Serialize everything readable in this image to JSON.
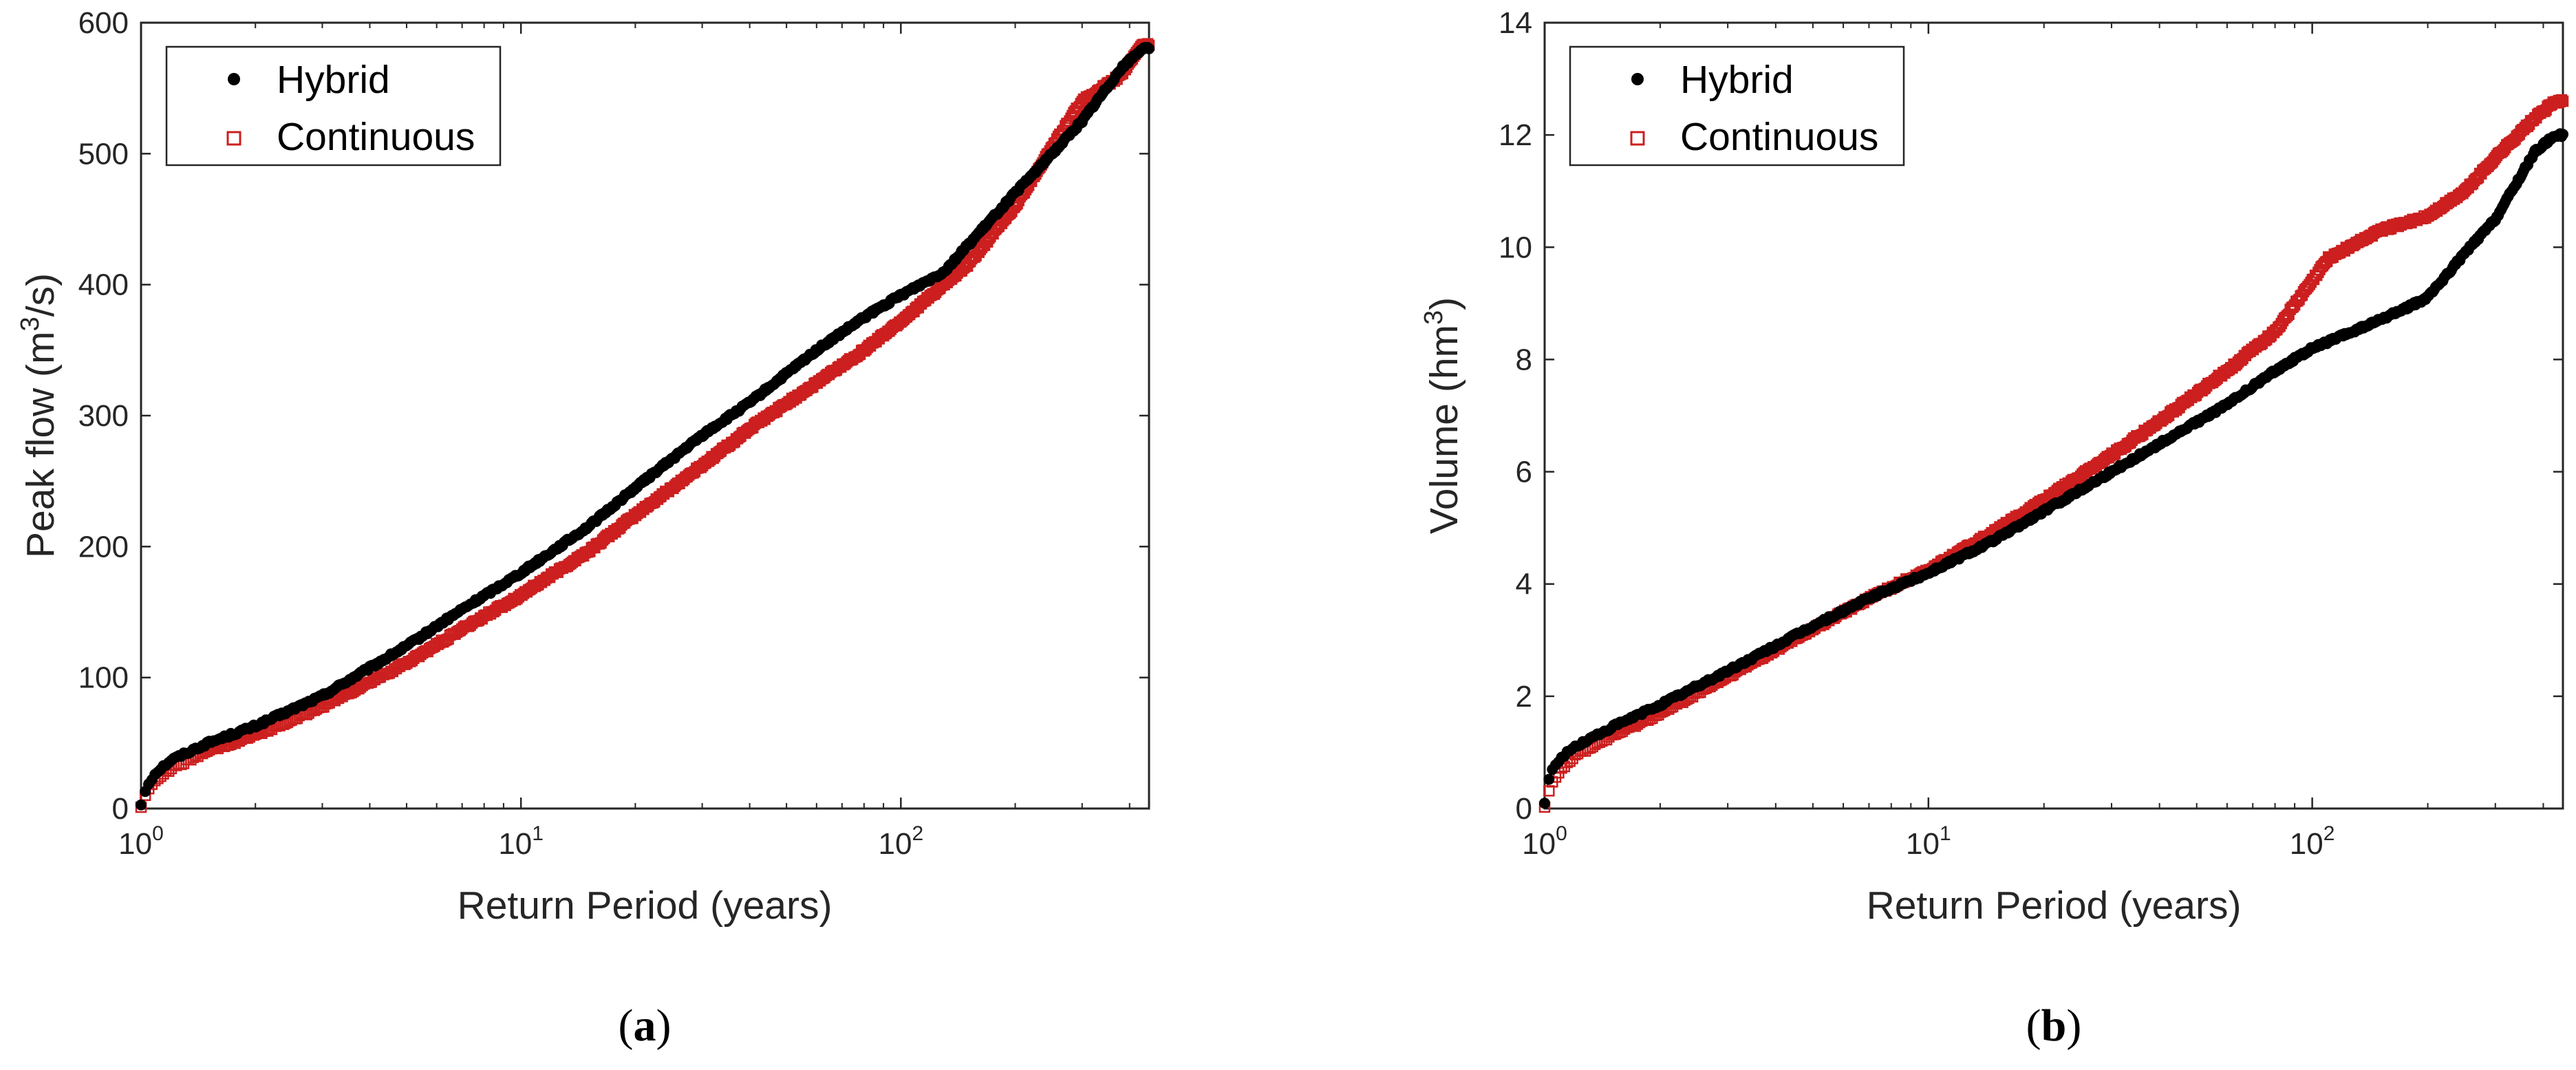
{
  "chart_data": [
    {
      "type": "scatter",
      "caption": "a",
      "xscale": "log",
      "xlabel": "Return Period (years)",
      "ylabel_prefix": "Peak flow (m",
      "ylabel_sup": "3",
      "ylabel_suffix": "/s)",
      "xlim": [
        1,
        450
      ],
      "ylim": [
        0,
        600
      ],
      "x_ticks": [
        {
          "base": "10",
          "exp": "0",
          "value": 1
        },
        {
          "base": "10",
          "exp": "1",
          "value": 10
        },
        {
          "base": "10",
          "exp": "2",
          "value": 100
        }
      ],
      "y_ticks": [
        0,
        100,
        200,
        300,
        400,
        500,
        600
      ],
      "legend_position": "top-left",
      "series": [
        {
          "name": "Hybrid",
          "marker": "filled-circle",
          "color": "#000000",
          "curve": [
            [
              1.0,
              3
            ],
            [
              1.02,
              12
            ],
            [
              1.05,
              20
            ],
            [
              1.1,
              28
            ],
            [
              1.2,
              37
            ],
            [
              1.5,
              50
            ],
            [
              2.0,
              63
            ],
            [
              3.0,
              86
            ],
            [
              5.0,
              124
            ],
            [
              7.0,
              152
            ],
            [
              10.0,
              180
            ],
            [
              15.0,
              215
            ],
            [
              20.0,
              245
            ],
            [
              30.0,
              285
            ],
            [
              40.0,
              310
            ],
            [
              60.0,
              350
            ],
            [
              80.0,
              375
            ],
            [
              100.0,
              392
            ],
            [
              130.0,
              410
            ],
            [
              150.0,
              430
            ],
            [
              200.0,
              470
            ],
            [
              250.0,
              500
            ],
            [
              300.0,
              525
            ],
            [
              380.0,
              565
            ],
            [
              430.0,
              580
            ]
          ]
        },
        {
          "name": "Continuous",
          "marker": "open-square",
          "color": "#cc1f1f",
          "curve": [
            [
              1.0,
              2
            ],
            [
              1.02,
              9
            ],
            [
              1.05,
              15
            ],
            [
              1.1,
              23
            ],
            [
              1.2,
              31
            ],
            [
              1.5,
              44
            ],
            [
              2.0,
              56
            ],
            [
              3.0,
              78
            ],
            [
              5.0,
              111
            ],
            [
              7.0,
              137
            ],
            [
              10.0,
              163
            ],
            [
              15.0,
              196
            ],
            [
              20.0,
              224
            ],
            [
              30.0,
              262
            ],
            [
              40.0,
              290
            ],
            [
              60.0,
              325
            ],
            [
              80.0,
              350
            ],
            [
              100.0,
              372
            ],
            [
              130.0,
              400
            ],
            [
              150.0,
              415
            ],
            [
              200.0,
              460
            ],
            [
              250.0,
              505
            ],
            [
              300.0,
              540
            ],
            [
              380.0,
              560
            ],
            [
              430.0,
              583
            ]
          ]
        }
      ]
    },
    {
      "type": "scatter",
      "caption": "b",
      "xscale": "log",
      "xlabel": "Return Period (years)",
      "ylabel_prefix": "Volume (hm",
      "ylabel_sup": "3",
      "ylabel_suffix": ")",
      "xlim": [
        1,
        450
      ],
      "ylim": [
        0,
        14
      ],
      "x_ticks": [
        {
          "base": "10",
          "exp": "0",
          "value": 1
        },
        {
          "base": "10",
          "exp": "1",
          "value": 10
        },
        {
          "base": "10",
          "exp": "2",
          "value": 100
        }
      ],
      "y_ticks": [
        0,
        2,
        4,
        6,
        8,
        10,
        12,
        14
      ],
      "legend_position": "top-left",
      "series": [
        {
          "name": "Hybrid",
          "marker": "filled-circle",
          "color": "#000000",
          "curve": [
            [
              1.0,
              0.1
            ],
            [
              1.02,
              0.45
            ],
            [
              1.05,
              0.7
            ],
            [
              1.1,
              0.9
            ],
            [
              1.2,
              1.1
            ],
            [
              1.5,
              1.45
            ],
            [
              2.0,
              1.85
            ],
            [
              3.0,
              2.45
            ],
            [
              5.0,
              3.25
            ],
            [
              7.0,
              3.75
            ],
            [
              10.0,
              4.2
            ],
            [
              15.0,
              4.8
            ],
            [
              20.0,
              5.3
            ],
            [
              30.0,
              6.0
            ],
            [
              40.0,
              6.5
            ],
            [
              60.0,
              7.2
            ],
            [
              80.0,
              7.8
            ],
            [
              100.0,
              8.2
            ],
            [
              150.0,
              8.7
            ],
            [
              200.0,
              9.1
            ],
            [
              250.0,
              9.9
            ],
            [
              300.0,
              10.5
            ],
            [
              380.0,
              11.7
            ],
            [
              430.0,
              12.0
            ]
          ]
        },
        {
          "name": "Continuous",
          "marker": "open-square",
          "color": "#cc1f1f",
          "curve": [
            [
              1.0,
              0.05
            ],
            [
              1.02,
              0.3
            ],
            [
              1.05,
              0.5
            ],
            [
              1.1,
              0.7
            ],
            [
              1.2,
              0.95
            ],
            [
              1.5,
              1.3
            ],
            [
              2.0,
              1.7
            ],
            [
              3.0,
              2.35
            ],
            [
              5.0,
              3.2
            ],
            [
              7.0,
              3.75
            ],
            [
              10.0,
              4.25
            ],
            [
              15.0,
              4.95
            ],
            [
              20.0,
              5.5
            ],
            [
              30.0,
              6.3
            ],
            [
              40.0,
              6.9
            ],
            [
              60.0,
              7.8
            ],
            [
              80.0,
              8.5
            ],
            [
              100.0,
              9.4
            ],
            [
              110.0,
              9.8
            ],
            [
              150.0,
              10.3
            ],
            [
              200.0,
              10.55
            ],
            [
              250.0,
              11.0
            ],
            [
              300.0,
              11.6
            ],
            [
              380.0,
              12.3
            ],
            [
              430.0,
              12.6
            ]
          ]
        }
      ]
    }
  ]
}
